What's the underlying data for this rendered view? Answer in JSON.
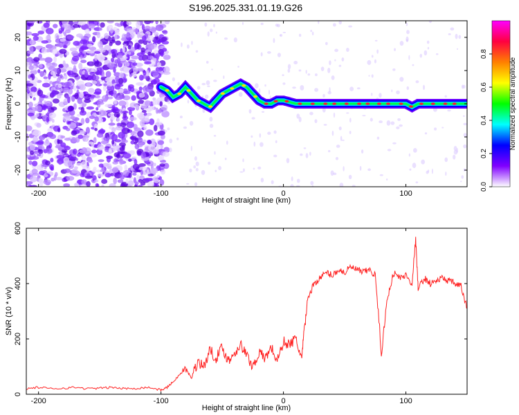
{
  "title": "S196.2025.331.01.19.G26",
  "chart_data": [
    {
      "type": "heatmap",
      "name": "spectrogram",
      "xlabel": "Height of straight line (km)",
      "ylabel": "Frequency (Hz)",
      "xlim": [
        -210,
        150
      ],
      "ylim": [
        -25,
        25
      ],
      "xticks": [
        -200,
        -100,
        0,
        100
      ],
      "yticks": [
        -20,
        -10,
        0,
        10,
        20
      ],
      "colorbar": {
        "label": "Normalized spectral amplitude",
        "ticks": [
          "0.0",
          "0.2",
          "0.4",
          "0.6",
          "0.8"
        ],
        "tick_values": [
          0.0,
          0.2,
          0.4,
          0.6,
          0.8
        ],
        "range": [
          0,
          1
        ],
        "colors": [
          "#ffffff",
          "#8000ff",
          "#0000ff",
          "#00ffff",
          "#00ff00",
          "#ffff00",
          "#ff8000",
          "#ff0040",
          "#ff00ff"
        ]
      },
      "ridge": {
        "x": [
          -100,
          -95,
          -90,
          -85,
          -80,
          -75,
          -70,
          -65,
          -60,
          -55,
          -50,
          -45,
          -40,
          -35,
          -30,
          -25,
          -20,
          -15,
          -10,
          -5,
          0,
          10,
          50,
          100,
          105,
          110,
          150
        ],
        "freq": [
          5,
          4,
          2,
          3,
          5,
          3,
          1,
          0,
          -1,
          1,
          3,
          4,
          5,
          6,
          5,
          3,
          1,
          0,
          0,
          1,
          1,
          0,
          0,
          0,
          -1,
          0,
          0
        ]
      }
    },
    {
      "type": "line",
      "name": "snr",
      "xlabel": "Height of straight line (km)",
      "ylabel": "SNR (10 * v/v)",
      "xlim": [
        -210,
        150
      ],
      "ylim": [
        0,
        600
      ],
      "xticks": [
        -200,
        -100,
        0,
        100
      ],
      "yticks": [
        0,
        200,
        400,
        600
      ],
      "color": "#ff2020",
      "series": [
        {
          "name": "SNR",
          "x": [
            -210,
            -200,
            -190,
            -180,
            -170,
            -160,
            -150,
            -140,
            -130,
            -120,
            -110,
            -100,
            -95,
            -90,
            -85,
            -80,
            -75,
            -70,
            -65,
            -60,
            -55,
            -50,
            -45,
            -40,
            -35,
            -30,
            -25,
            -20,
            -15,
            -10,
            -5,
            0,
            5,
            10,
            15,
            17,
            20,
            25,
            30,
            35,
            40,
            45,
            50,
            55,
            60,
            65,
            70,
            75,
            80,
            85,
            90,
            95,
            100,
            105,
            108,
            110,
            115,
            120,
            125,
            130,
            135,
            140,
            145,
            150
          ],
          "y": [
            20,
            25,
            20,
            22,
            25,
            20,
            22,
            25,
            20,
            22,
            25,
            15,
            25,
            45,
            70,
            90,
            60,
            120,
            100,
            160,
            130,
            170,
            120,
            150,
            180,
            140,
            100,
            150,
            130,
            170,
            120,
            190,
            180,
            200,
            130,
            230,
            350,
            400,
            420,
            440,
            430,
            450,
            440,
            460,
            450,
            440,
            450,
            430,
            150,
            350,
            440,
            420,
            430,
            400,
            560,
            380,
            420,
            400,
            410,
            420,
            410,
            400,
            390,
            310
          ]
        }
      ]
    }
  ]
}
